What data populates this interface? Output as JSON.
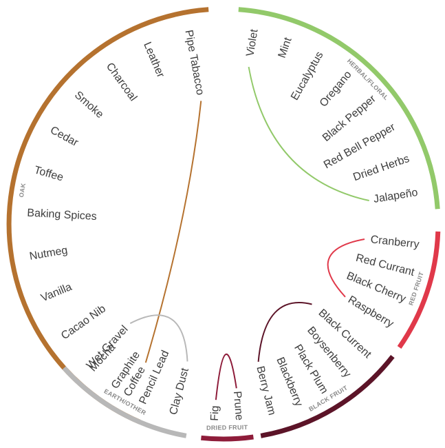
{
  "chart_data": {
    "type": "radial-wheel",
    "categories": [
      {
        "name": "OAK",
        "color": "#b5722f",
        "items": [
          "Pipe Tabacco",
          "Leather",
          "Charcoal",
          "Smoke",
          "Cedar",
          "Toffee",
          "Baking Spices",
          "Nutmeg",
          "Vanilla",
          "Cacao Nib",
          "Mocha",
          "Coffee"
        ]
      },
      {
        "name": "HERBAL/FLORAL",
        "color": "#92c96a",
        "items": [
          "Violet",
          "Mint",
          "Eucalyptus",
          "Oregano",
          "Black Pepper",
          "Red Bell Pepper",
          "Dried Herbs",
          "Jalapeño"
        ]
      },
      {
        "name": "RED FRUIT",
        "color": "#e0394a",
        "items": [
          "Cranberry",
          "Red Currant",
          "Black Cherry",
          "Raspberry"
        ]
      },
      {
        "name": "BLACK FRUIT",
        "color": "#5c1428",
        "items": [
          "Black Current",
          "Boysenberry",
          "Plack Plum",
          "Blackberry",
          "Berry Jam"
        ]
      },
      {
        "name": "DRIED FRUIT",
        "color": "#8e1c3a",
        "items": [
          "Prune",
          "Fig"
        ]
      },
      {
        "name": "EARTH/OTHER",
        "color": "#b8b8b8",
        "items": [
          "Clay Dust",
          "Pencil Lead",
          "Graphite",
          "Wet Gravel"
        ]
      }
    ]
  }
}
